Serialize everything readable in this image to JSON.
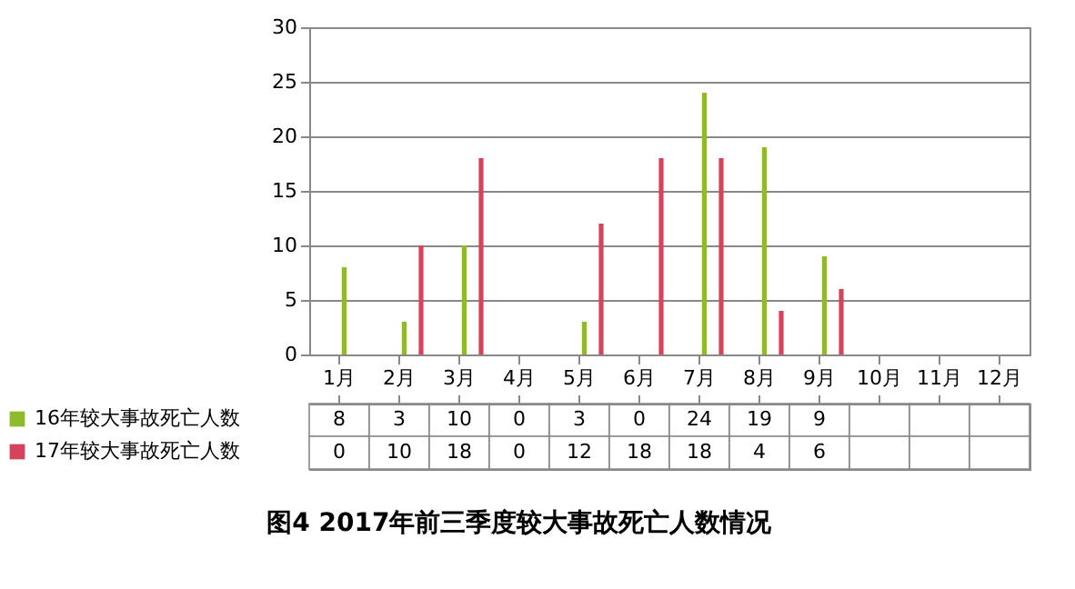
{
  "chart_data": {
    "type": "bar",
    "title": "图4  2017年前三季度较大事故死亡人数情况",
    "categories": [
      "1月",
      "2月",
      "3月",
      "4月",
      "5月",
      "6月",
      "7月",
      "8月",
      "9月",
      "10月",
      "11月",
      "12月"
    ],
    "series": [
      {
        "name": "16年较大事故死亡人数",
        "color": "#8dbb2c",
        "values": [
          8,
          3,
          10,
          0,
          3,
          0,
          24,
          19,
          9,
          null,
          null,
          null
        ]
      },
      {
        "name": "17年较大事故死亡人数",
        "color": "#d6445c",
        "values": [
          0,
          10,
          18,
          0,
          12,
          18,
          18,
          4,
          6,
          null,
          null,
          null
        ]
      }
    ],
    "ylim": [
      0,
      30
    ],
    "yticks": [
      0,
      5,
      10,
      15,
      20,
      25,
      30
    ],
    "grid": "y",
    "legend": "bottom left",
    "data_labels": true
  }
}
